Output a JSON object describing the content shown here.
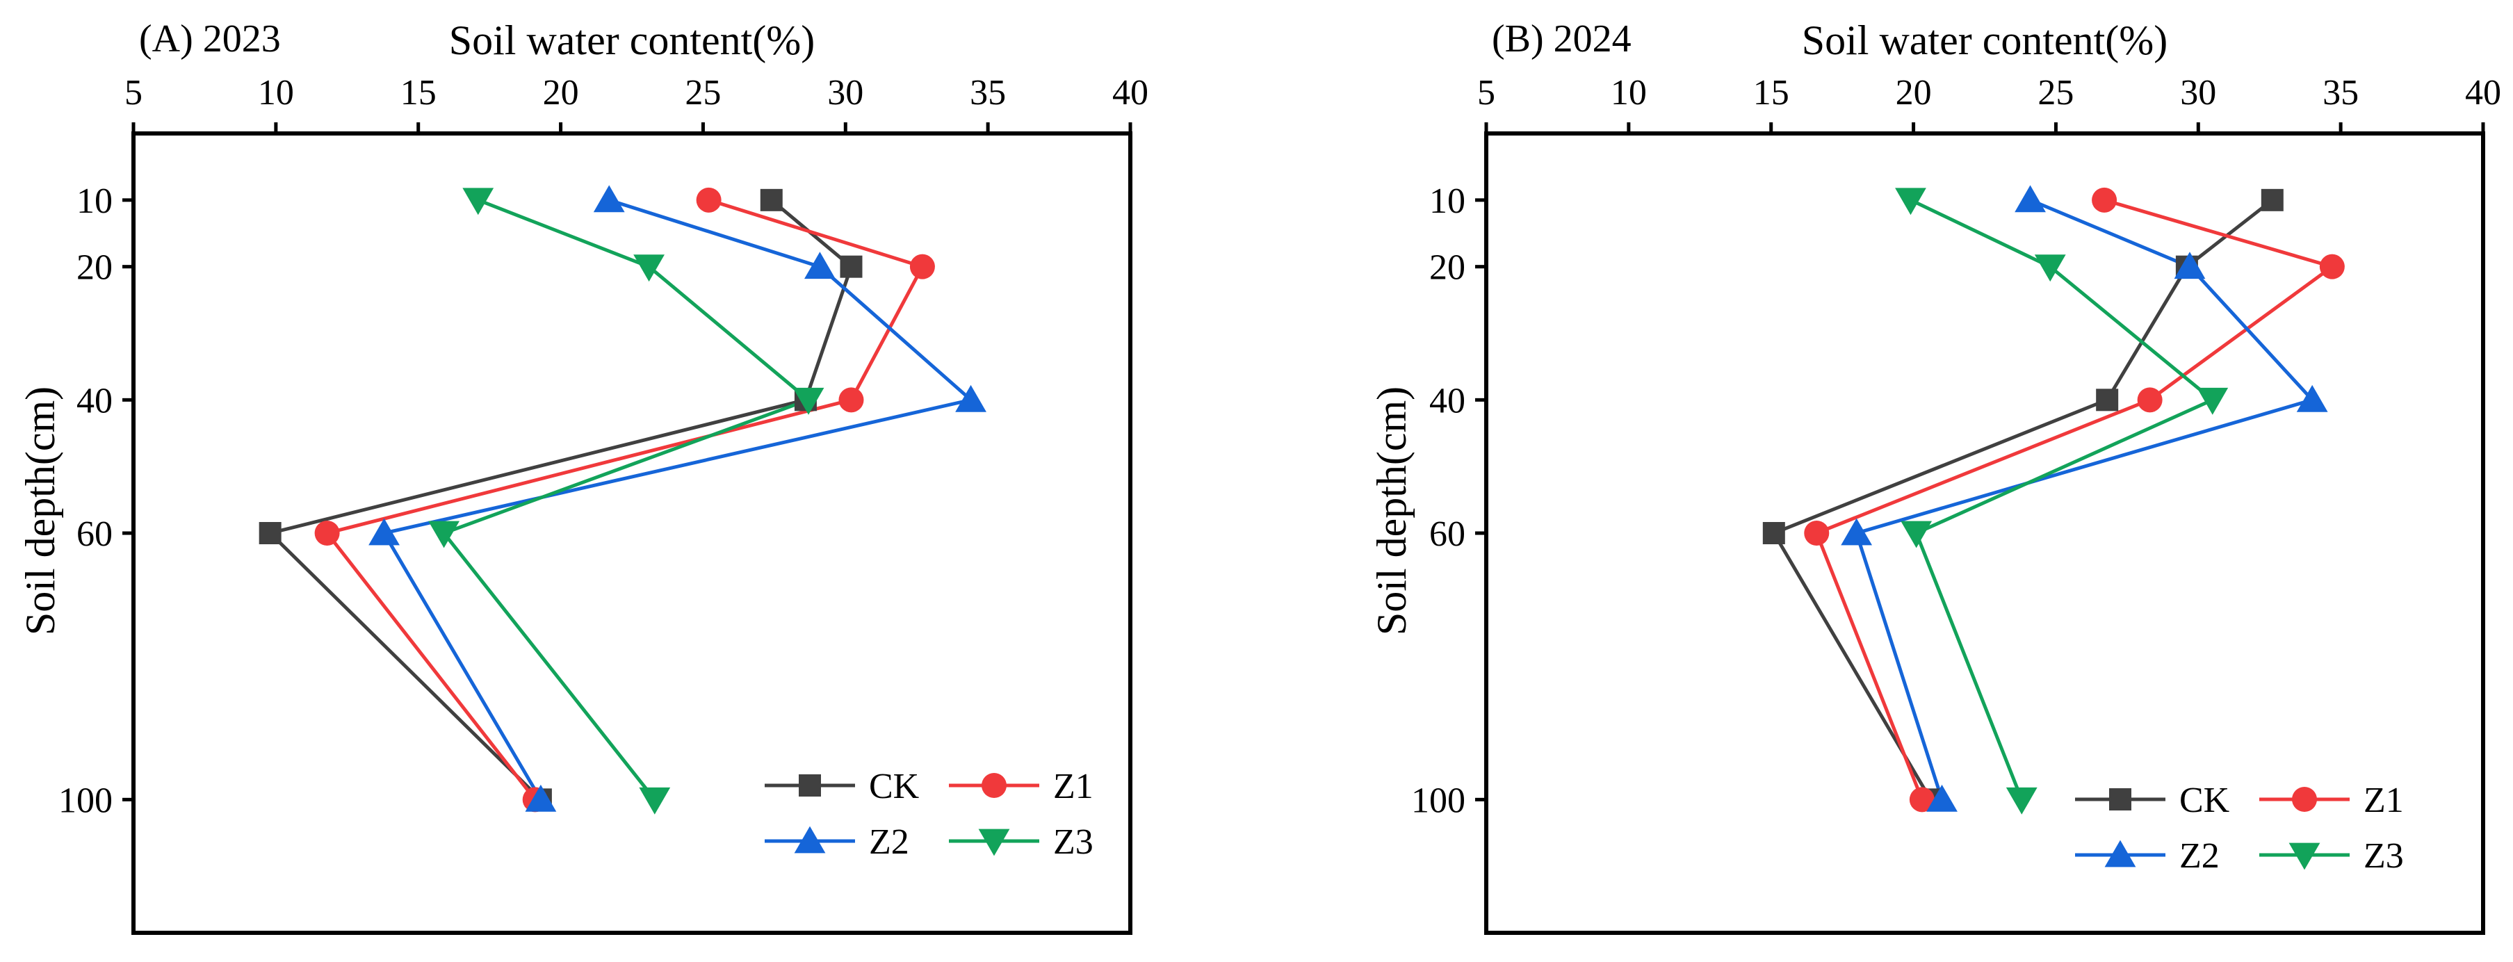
{
  "chart_data": [
    {
      "type": "line",
      "title": "(A) 2023",
      "xlabel": "Soil water content(%)",
      "ylabel": "Soil depth(cm)",
      "xlim": [
        5,
        40
      ],
      "ylim": [
        0,
        120
      ],
      "y_inverted": true,
      "x_axis_position": "top",
      "xticks": [
        5,
        10,
        15,
        20,
        25,
        30,
        35,
        40
      ],
      "yticks": [
        10,
        20,
        40,
        60,
        100
      ],
      "grid": false,
      "legend_position": "bottom-right",
      "series": [
        {
          "name": "CK",
          "color": "#404040",
          "marker": "square",
          "points": [
            {
              "x": 27.4,
              "y": 10
            },
            {
              "x": 30.2,
              "y": 20
            },
            {
              "x": 28.6,
              "y": 40
            },
            {
              "x": 9.8,
              "y": 60
            },
            {
              "x": 19.3,
              "y": 100
            }
          ]
        },
        {
          "name": "Z1",
          "color": "#f0393b",
          "marker": "circle",
          "points": [
            {
              "x": 25.2,
              "y": 10
            },
            {
              "x": 32.7,
              "y": 20
            },
            {
              "x": 30.2,
              "y": 40
            },
            {
              "x": 11.8,
              "y": 60
            },
            {
              "x": 19.1,
              "y": 100
            }
          ]
        },
        {
          "name": "Z2",
          "color": "#1565d8",
          "marker": "triangle-up",
          "points": [
            {
              "x": 21.7,
              "y": 10
            },
            {
              "x": 29.1,
              "y": 20
            },
            {
              "x": 34.4,
              "y": 40
            },
            {
              "x": 13.8,
              "y": 60
            },
            {
              "x": 19.3,
              "y": 100
            }
          ]
        },
        {
          "name": "Z3",
          "color": "#12a35a",
          "marker": "triangle-down",
          "points": [
            {
              "x": 17.1,
              "y": 10
            },
            {
              "x": 23.1,
              "y": 20
            },
            {
              "x": 28.7,
              "y": 40
            },
            {
              "x": 15.9,
              "y": 60
            },
            {
              "x": 23.3,
              "y": 100
            }
          ]
        }
      ]
    },
    {
      "type": "line",
      "title": "(B) 2024",
      "xlabel": "Soil water content(%)",
      "ylabel": "Soil depth(cm)",
      "xlim": [
        5,
        40
      ],
      "ylim": [
        0,
        120
      ],
      "y_inverted": true,
      "x_axis_position": "top",
      "xticks": [
        5,
        10,
        15,
        20,
        25,
        30,
        35,
        40
      ],
      "yticks": [
        10,
        20,
        40,
        60,
        100
      ],
      "grid": false,
      "legend_position": "bottom-right",
      "series": [
        {
          "name": "CK",
          "color": "#404040",
          "marker": "square",
          "points": [
            {
              "x": 32.6,
              "y": 10
            },
            {
              "x": 29.6,
              "y": 20
            },
            {
              "x": 26.8,
              "y": 40
            },
            {
              "x": 15.1,
              "y": 60
            },
            {
              "x": 20.6,
              "y": 100
            }
          ]
        },
        {
          "name": "Z1",
          "color": "#f0393b",
          "marker": "circle",
          "points": [
            {
              "x": 26.7,
              "y": 10
            },
            {
              "x": 34.7,
              "y": 20
            },
            {
              "x": 28.3,
              "y": 40
            },
            {
              "x": 16.6,
              "y": 60
            },
            {
              "x": 20.3,
              "y": 100
            }
          ]
        },
        {
          "name": "Z2",
          "color": "#1565d8",
          "marker": "triangle-up",
          "points": [
            {
              "x": 24.1,
              "y": 10
            },
            {
              "x": 29.7,
              "y": 20
            },
            {
              "x": 34.0,
              "y": 40
            },
            {
              "x": 18.0,
              "y": 60
            },
            {
              "x": 21.0,
              "y": 100
            }
          ]
        },
        {
          "name": "Z3",
          "color": "#12a35a",
          "marker": "triangle-down",
          "points": [
            {
              "x": 19.9,
              "y": 10
            },
            {
              "x": 24.8,
              "y": 20
            },
            {
              "x": 30.5,
              "y": 40
            },
            {
              "x": 20.1,
              "y": 60
            },
            {
              "x": 23.8,
              "y": 100
            }
          ]
        }
      ]
    }
  ]
}
